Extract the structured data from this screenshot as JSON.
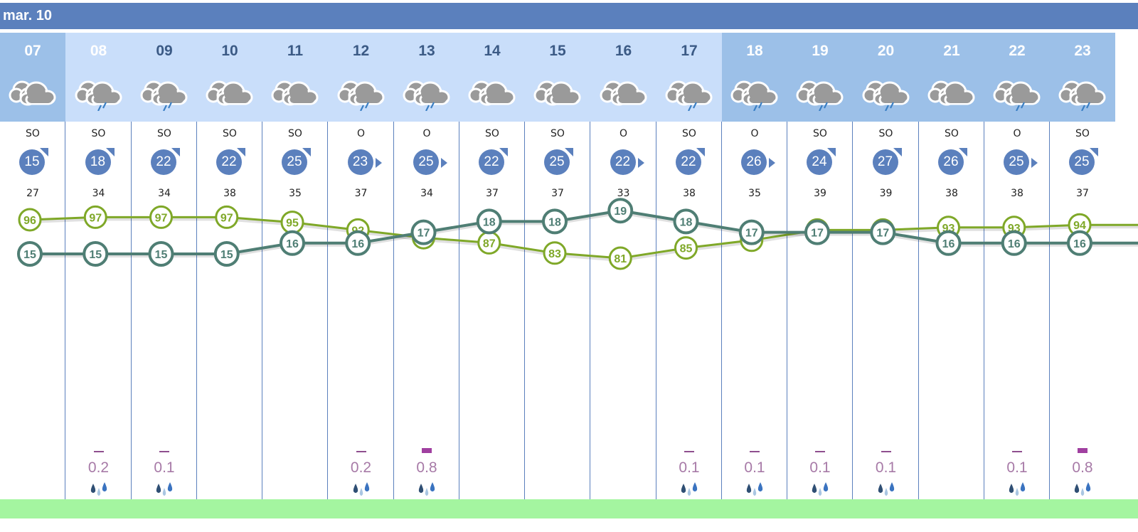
{
  "header": {
    "day_label": "mar. 10"
  },
  "colors": {
    "header_bar": "#5b80bd",
    "hour_bg_current": "#9cc0e8",
    "hour_bg_day": "#c9defa",
    "hour_bg_evening": "#9cc0e8",
    "wind_circle": "#5b80bd",
    "humidity_line": "#7fa828",
    "temperature_line": "#4f7e74",
    "precip_text": "#a77aa7",
    "footer_band": "#a4f5a0"
  },
  "hours": [
    {
      "hour": "07",
      "icon": "cloudy-icon",
      "wind_dir": "SO",
      "wind_speed": "15",
      "gust": "27",
      "humidity": "96",
      "temperature": "15",
      "precip": "",
      "arrow": "ne",
      "bg": "current",
      "hour_color": "#ffffff"
    },
    {
      "hour": "08",
      "icon": "cloudy-rain-icon",
      "wind_dir": "SO",
      "wind_speed": "18",
      "gust": "34",
      "humidity": "97",
      "temperature": "15",
      "precip": "0.2",
      "arrow": "ne",
      "bg": "day",
      "hour_color": "#ffffff"
    },
    {
      "hour": "09",
      "icon": "cloudy-rain-icon",
      "wind_dir": "SO",
      "wind_speed": "22",
      "gust": "34",
      "humidity": "97",
      "temperature": "15",
      "precip": "0.1",
      "arrow": "ne",
      "bg": "day",
      "hour_color": "#3b5a85"
    },
    {
      "hour": "10",
      "icon": "cloudy-icon",
      "wind_dir": "SO",
      "wind_speed": "22",
      "gust": "38",
      "humidity": "97",
      "temperature": "15",
      "precip": "",
      "arrow": "ne",
      "bg": "day",
      "hour_color": "#3b5a85"
    },
    {
      "hour": "11",
      "icon": "cloudy-icon",
      "wind_dir": "SO",
      "wind_speed": "25",
      "gust": "35",
      "humidity": "95",
      "temperature": "16",
      "precip": "",
      "arrow": "ne",
      "bg": "day",
      "hour_color": "#3b5a85"
    },
    {
      "hour": "12",
      "icon": "cloudy-rain-icon",
      "wind_dir": "O",
      "wind_speed": "23",
      "gust": "37",
      "humidity": "92",
      "temperature": "16",
      "precip": "0.2",
      "arrow": "e",
      "bg": "day",
      "hour_color": "#3b5a85"
    },
    {
      "hour": "13",
      "icon": "cloudy-rain-icon",
      "wind_dir": "O",
      "wind_speed": "25",
      "gust": "34",
      "humidity": "89",
      "temperature": "17",
      "precip": "0.8",
      "arrow": "e",
      "bg": "day",
      "hour_color": "#3b5a85"
    },
    {
      "hour": "14",
      "icon": "cloudy-icon",
      "wind_dir": "SO",
      "wind_speed": "22",
      "gust": "37",
      "humidity": "87",
      "temperature": "18",
      "precip": "",
      "arrow": "ne",
      "bg": "day",
      "hour_color": "#3b5a85"
    },
    {
      "hour": "15",
      "icon": "cloudy-icon",
      "wind_dir": "SO",
      "wind_speed": "25",
      "gust": "37",
      "humidity": "83",
      "temperature": "18",
      "precip": "",
      "arrow": "ne",
      "bg": "day",
      "hour_color": "#3b5a85"
    },
    {
      "hour": "16",
      "icon": "cloudy-icon",
      "wind_dir": "O",
      "wind_speed": "22",
      "gust": "33",
      "humidity": "81",
      "temperature": "19",
      "precip": "",
      "arrow": "e",
      "bg": "day",
      "hour_color": "#3b5a85"
    },
    {
      "hour": "17",
      "icon": "cloudy-rain-icon",
      "wind_dir": "SO",
      "wind_speed": "22",
      "gust": "38",
      "humidity": "85",
      "temperature": "18",
      "precip": "0.1",
      "arrow": "ne",
      "bg": "day",
      "hour_color": "#3b5a85"
    },
    {
      "hour": "18",
      "icon": "cloudy-rain-icon",
      "wind_dir": "O",
      "wind_speed": "26",
      "gust": "35",
      "humidity": "88",
      "temperature": "17",
      "precip": "0.1",
      "arrow": "e",
      "bg": "evening",
      "hour_color": "#ffffff"
    },
    {
      "hour": "19",
      "icon": "cloudy-rain-icon",
      "wind_dir": "SO",
      "wind_speed": "24",
      "gust": "39",
      "humidity": "92",
      "temperature": "17",
      "precip": "0.1",
      "arrow": "ne",
      "bg": "evening",
      "hour_color": "#ffffff"
    },
    {
      "hour": "20",
      "icon": "cloudy-rain-icon",
      "wind_dir": "SO",
      "wind_speed": "27",
      "gust": "39",
      "humidity": "92",
      "temperature": "17",
      "precip": "0.1",
      "arrow": "ne",
      "bg": "evening",
      "hour_color": "#ffffff"
    },
    {
      "hour": "21",
      "icon": "cloudy-icon",
      "wind_dir": "SO",
      "wind_speed": "26",
      "gust": "38",
      "humidity": "93",
      "temperature": "16",
      "precip": "",
      "arrow": "ne",
      "bg": "evening",
      "hour_color": "#ffffff"
    },
    {
      "hour": "22",
      "icon": "cloudy-rain-icon",
      "wind_dir": "O",
      "wind_speed": "25",
      "gust": "38",
      "humidity": "93",
      "temperature": "16",
      "precip": "0.1",
      "arrow": "e",
      "bg": "evening",
      "hour_color": "#ffffff"
    },
    {
      "hour": "23",
      "icon": "cloudy-rain-icon",
      "wind_dir": "SO",
      "wind_speed": "25",
      "gust": "37",
      "humidity": "94",
      "temperature": "16",
      "precip": "0.8",
      "arrow": "ne",
      "bg": "evening",
      "hour_color": "#ffffff"
    }
  ]
}
